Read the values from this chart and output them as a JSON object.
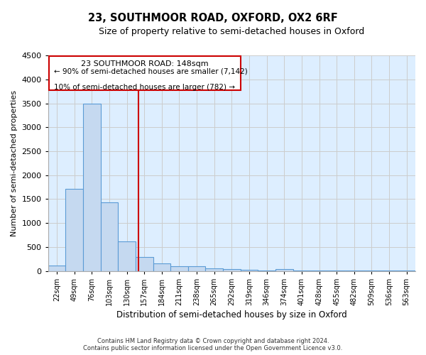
{
  "title": "23, SOUTHMOOR ROAD, OXFORD, OX2 6RF",
  "subtitle": "Size of property relative to semi-detached houses in Oxford",
  "xlabel": "Distribution of semi-detached houses by size in Oxford",
  "ylabel": "Number of semi-detached properties",
  "categories": [
    "22sqm",
    "49sqm",
    "76sqm",
    "103sqm",
    "130sqm",
    "157sqm",
    "184sqm",
    "211sqm",
    "238sqm",
    "265sqm",
    "292sqm",
    "319sqm",
    "346sqm",
    "374sqm",
    "401sqm",
    "428sqm",
    "455sqm",
    "482sqm",
    "509sqm",
    "536sqm",
    "563sqm"
  ],
  "values": [
    120,
    1720,
    3500,
    1440,
    610,
    285,
    155,
    100,
    95,
    60,
    40,
    25,
    10,
    35,
    5,
    5,
    5,
    5,
    5,
    5,
    5
  ],
  "bar_color": "#c5d9f0",
  "bar_edge_color": "#5b9bd5",
  "property_label": "23 SOUTHMOOR ROAD: 148sqm",
  "pct_smaller": 90,
  "count_smaller": 7142,
  "pct_larger": 10,
  "count_larger": 782,
  "vline_x": 4.67,
  "vline_color": "#cc0000",
  "annotation_box_color": "#cc0000",
  "ylim": [
    0,
    4500
  ],
  "yticks": [
    0,
    500,
    1000,
    1500,
    2000,
    2500,
    3000,
    3500,
    4000,
    4500
  ],
  "grid_color": "#cccccc",
  "background_color": "#ffffff",
  "plot_bg_color": "#ddeeff",
  "footer_line1": "Contains HM Land Registry data © Crown copyright and database right 2024.",
  "footer_line2": "Contains public sector information licensed under the Open Government Licence v3.0."
}
